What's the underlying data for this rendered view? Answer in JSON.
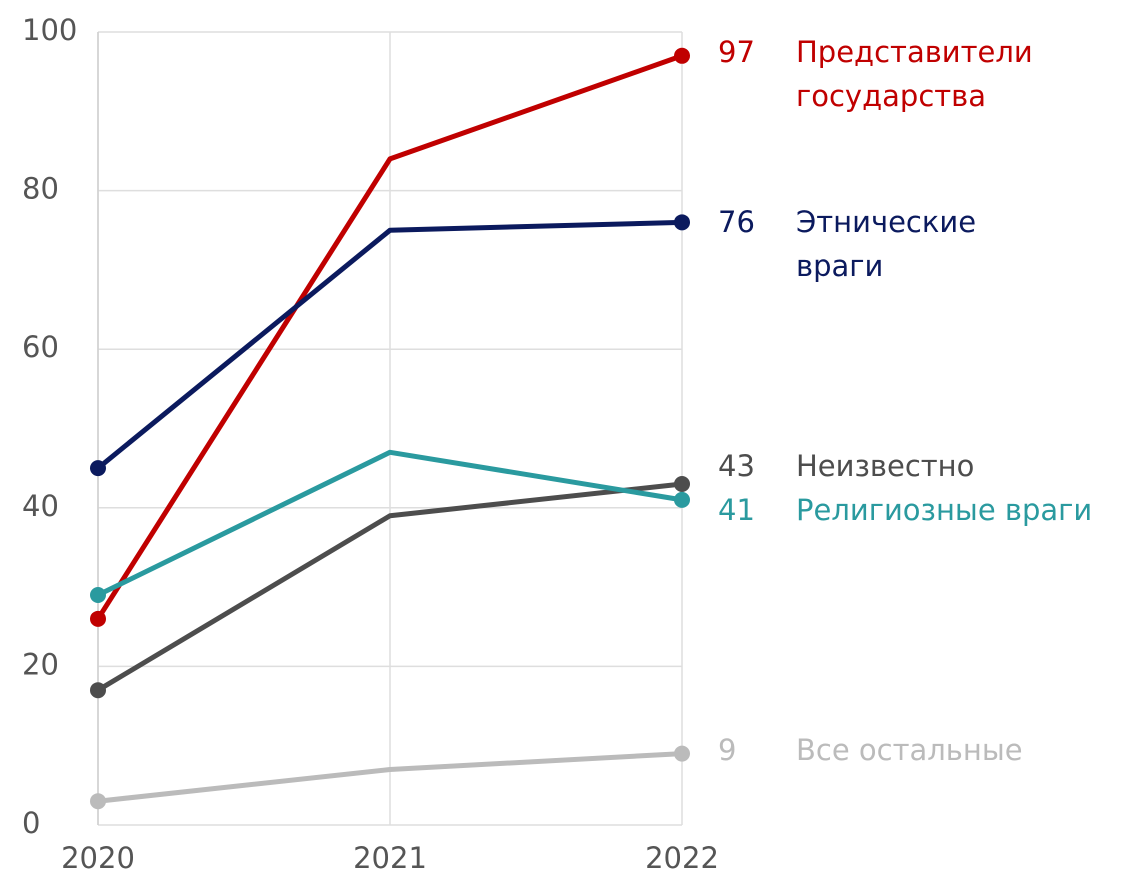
{
  "chart_data": {
    "type": "line",
    "x": [
      2020,
      2021,
      2022
    ],
    "xlim": [
      2020,
      2022
    ],
    "xticks": [
      2020,
      2021,
      2022
    ],
    "ylim": [
      0,
      100
    ],
    "yticks": [
      0,
      20,
      40,
      60,
      80,
      100
    ],
    "grid": true,
    "series": [
      {
        "name": "Представители государства",
        "color": "#c00000",
        "values": [
          26,
          84,
          97
        ]
      },
      {
        "name": "Этнические враги",
        "color": "#0b1a5e",
        "values": [
          45,
          75,
          76
        ]
      },
      {
        "name": "Неизвестно",
        "color": "#4d4d4d",
        "values": [
          17,
          39,
          43
        ]
      },
      {
        "name": "Религиозные враги",
        "color": "#2a9a9f",
        "values": [
          29,
          47,
          41
        ]
      },
      {
        "name": "Все остальные",
        "color": "#bbbbbb",
        "values": [
          3,
          7,
          9
        ]
      }
    ]
  }
}
